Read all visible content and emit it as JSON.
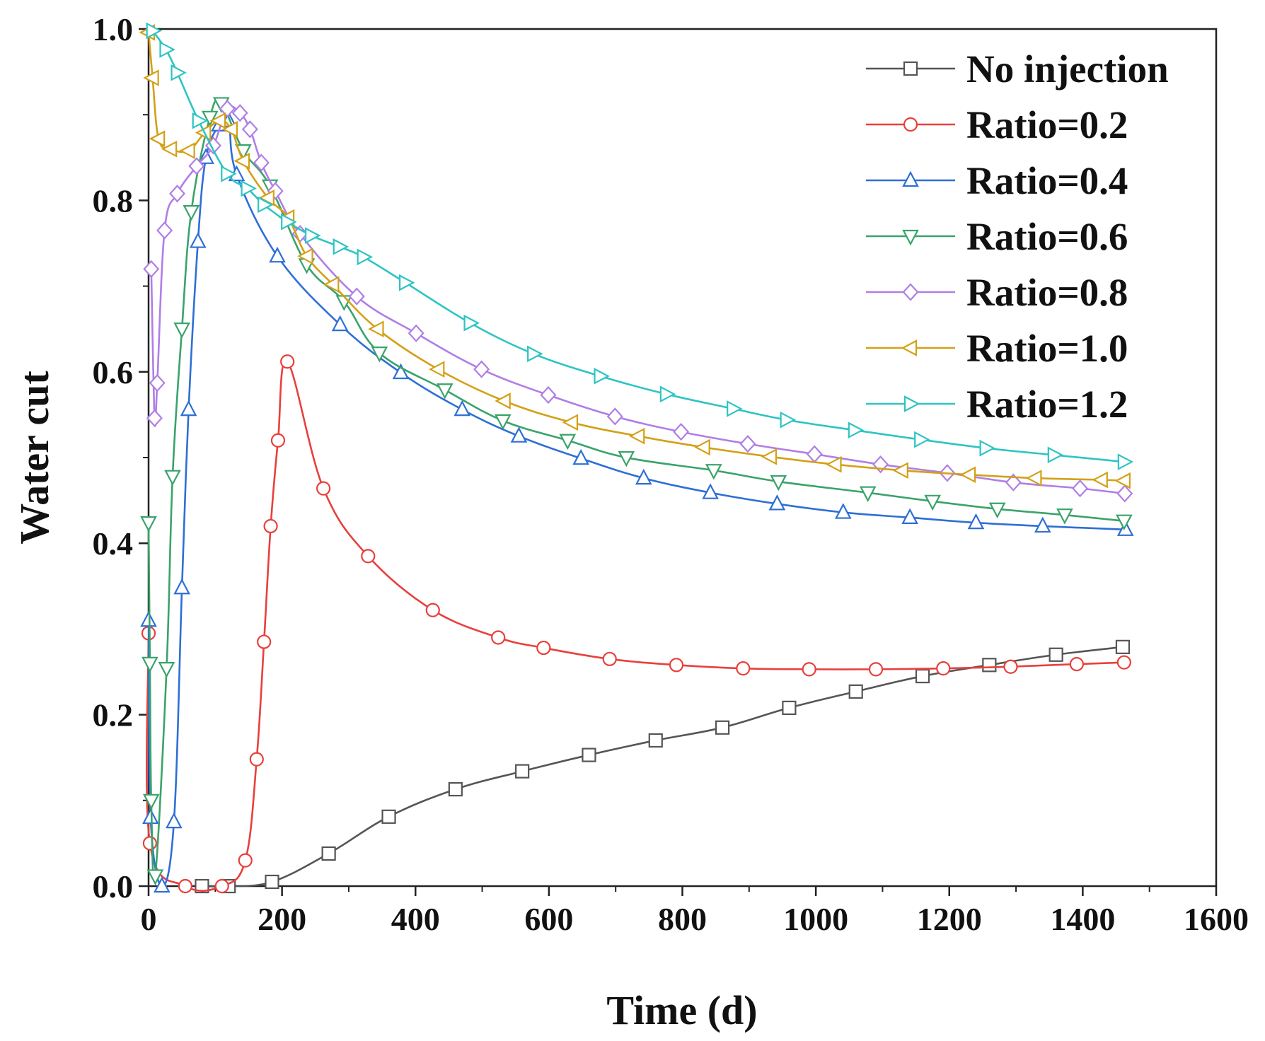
{
  "chart_data": {
    "type": "line",
    "title": "",
    "xlabel": "Time (d)",
    "ylabel": "Water cut",
    "xlim": [
      0,
      1600
    ],
    "ylim": [
      0,
      1.0
    ],
    "xticks": [
      "0",
      "200",
      "400",
      "600",
      "800",
      "1000",
      "1200",
      "1400",
      "1600"
    ],
    "yticks": [
      "0.0",
      "0.2",
      "0.4",
      "0.6",
      "0.8",
      "1.0"
    ],
    "grid": false,
    "legend_position": "top-right",
    "series": [
      {
        "name": "No injection",
        "color": "#555555",
        "marker": "square",
        "points": [
          [
            80,
            0
          ],
          [
            120,
            0
          ],
          [
            185,
            0.005
          ],
          [
            270,
            0.038
          ],
          [
            360,
            0.081
          ],
          [
            460,
            0.113
          ],
          [
            560,
            0.134
          ],
          [
            660,
            0.153
          ],
          [
            760,
            0.17
          ],
          [
            860,
            0.185
          ],
          [
            960,
            0.208
          ],
          [
            1060,
            0.227
          ],
          [
            1160,
            0.245
          ],
          [
            1260,
            0.258
          ],
          [
            1360,
            0.27
          ],
          [
            1460,
            0.279
          ]
        ]
      },
      {
        "name": "Ratio=0.2",
        "color": "#e8403c",
        "marker": "circle",
        "points": [
          [
            0,
            0.295
          ],
          [
            2,
            0.05
          ],
          [
            55,
            0
          ],
          [
            110,
            0
          ],
          [
            145,
            0.03
          ],
          [
            162,
            0.148
          ],
          [
            173,
            0.285
          ],
          [
            183,
            0.42
          ],
          [
            194,
            0.52
          ],
          [
            208,
            0.612
          ],
          [
            262,
            0.464
          ],
          [
            329,
            0.385
          ],
          [
            426,
            0.322
          ],
          [
            524,
            0.29
          ],
          [
            592,
            0.278
          ],
          [
            691,
            0.265
          ],
          [
            791,
            0.258
          ],
          [
            891,
            0.254
          ],
          [
            990,
            0.253
          ],
          [
            1090,
            0.253
          ],
          [
            1191,
            0.254
          ],
          [
            1292,
            0.256
          ],
          [
            1391,
            0.259
          ],
          [
            1462,
            0.261
          ]
        ]
      },
      {
        "name": "Ratio=0.4",
        "color": "#2e6fd6",
        "marker": "triangle-up",
        "points": [
          [
            0,
            0.31
          ],
          [
            3,
            0.08
          ],
          [
            20,
            0
          ],
          [
            38,
            0.075
          ],
          [
            50,
            0.348
          ],
          [
            60,
            0.556
          ],
          [
            74,
            0.752
          ],
          [
            86,
            0.85
          ],
          [
            106,
            0.888
          ],
          [
            120,
            0.893
          ],
          [
            132,
            0.83
          ],
          [
            193,
            0.735
          ],
          [
            287,
            0.655
          ],
          [
            378,
            0.599
          ],
          [
            470,
            0.556
          ],
          [
            555,
            0.525
          ],
          [
            648,
            0.499
          ],
          [
            742,
            0.476
          ],
          [
            842,
            0.459
          ],
          [
            942,
            0.446
          ],
          [
            1041,
            0.436
          ],
          [
            1141,
            0.43
          ],
          [
            1240,
            0.424
          ],
          [
            1340,
            0.42
          ],
          [
            1464,
            0.416
          ]
        ]
      },
      {
        "name": "Ratio=0.6",
        "color": "#3aa36a",
        "marker": "triangle-down",
        "points": [
          [
            0,
            0.424
          ],
          [
            2,
            0.26
          ],
          [
            4,
            0.1
          ],
          [
            10,
            0.012
          ],
          [
            27,
            0.254
          ],
          [
            36,
            0.478
          ],
          [
            50,
            0.65
          ],
          [
            64,
            0.787
          ],
          [
            92,
            0.897
          ],
          [
            109,
            0.913
          ],
          [
            142,
            0.858
          ],
          [
            182,
            0.817
          ],
          [
            237,
            0.725
          ],
          [
            293,
            0.682
          ],
          [
            346,
            0.622
          ],
          [
            444,
            0.579
          ],
          [
            531,
            0.543
          ],
          [
            628,
            0.52
          ],
          [
            716,
            0.5
          ],
          [
            847,
            0.485
          ],
          [
            944,
            0.472
          ],
          [
            1078,
            0.459
          ],
          [
            1175,
            0.449
          ],
          [
            1272,
            0.44
          ],
          [
            1373,
            0.433
          ],
          [
            1462,
            0.426
          ]
        ]
      },
      {
        "name": "Ratio=0.8",
        "color": "#b07ee6",
        "marker": "diamond",
        "points": [
          [
            4,
            0.72
          ],
          [
            9,
            0.546
          ],
          [
            13,
            0.587
          ],
          [
            24,
            0.765
          ],
          [
            43,
            0.808
          ],
          [
            72,
            0.84
          ],
          [
            97,
            0.864
          ],
          [
            118,
            0.907
          ],
          [
            137,
            0.902
          ],
          [
            152,
            0.883
          ],
          [
            169,
            0.844
          ],
          [
            190,
            0.811
          ],
          [
            227,
            0.761
          ],
          [
            312,
            0.688
          ],
          [
            401,
            0.645
          ],
          [
            499,
            0.603
          ],
          [
            599,
            0.573
          ],
          [
            699,
            0.548
          ],
          [
            798,
            0.53
          ],
          [
            898,
            0.516
          ],
          [
            998,
            0.504
          ],
          [
            1097,
            0.492
          ],
          [
            1197,
            0.482
          ],
          [
            1296,
            0.471
          ],
          [
            1396,
            0.464
          ],
          [
            1463,
            0.458
          ]
        ]
      },
      {
        "name": "Ratio=1.0",
        "color": "#d4a017",
        "marker": "triangle-left",
        "points": [
          [
            0,
            0.996
          ],
          [
            6,
            0.943
          ],
          [
            15,
            0.872
          ],
          [
            33,
            0.86
          ],
          [
            60,
            0.858
          ],
          [
            84,
            0.879
          ],
          [
            106,
            0.893
          ],
          [
            124,
            0.883
          ],
          [
            142,
            0.846
          ],
          [
            179,
            0.803
          ],
          [
            209,
            0.78
          ],
          [
            237,
            0.735
          ],
          [
            276,
            0.702
          ],
          [
            343,
            0.65
          ],
          [
            434,
            0.603
          ],
          [
            533,
            0.566
          ],
          [
            634,
            0.541
          ],
          [
            734,
            0.525
          ],
          [
            832,
            0.512
          ],
          [
            932,
            0.501
          ],
          [
            1029,
            0.492
          ],
          [
            1129,
            0.485
          ],
          [
            1230,
            0.48
          ],
          [
            1329,
            0.476
          ],
          [
            1428,
            0.474
          ],
          [
            1462,
            0.473
          ]
        ]
      },
      {
        "name": "Ratio=1.2",
        "color": "#2ec4c4",
        "marker": "triangle-right",
        "points": [
          [
            6,
            0.998
          ],
          [
            26,
            0.976
          ],
          [
            43,
            0.949
          ],
          [
            75,
            0.893
          ],
          [
            118,
            0.831
          ],
          [
            148,
            0.814
          ],
          [
            173,
            0.795
          ],
          [
            208,
            0.775
          ],
          [
            244,
            0.759
          ],
          [
            286,
            0.746
          ],
          [
            322,
            0.734
          ],
          [
            385,
            0.704
          ],
          [
            482,
            0.657
          ],
          [
            577,
            0.621
          ],
          [
            677,
            0.595
          ],
          [
            776,
            0.574
          ],
          [
            876,
            0.557
          ],
          [
            956,
            0.544
          ],
          [
            1058,
            0.532
          ],
          [
            1157,
            0.521
          ],
          [
            1255,
            0.511
          ],
          [
            1357,
            0.503
          ],
          [
            1462,
            0.495
          ]
        ]
      }
    ]
  }
}
